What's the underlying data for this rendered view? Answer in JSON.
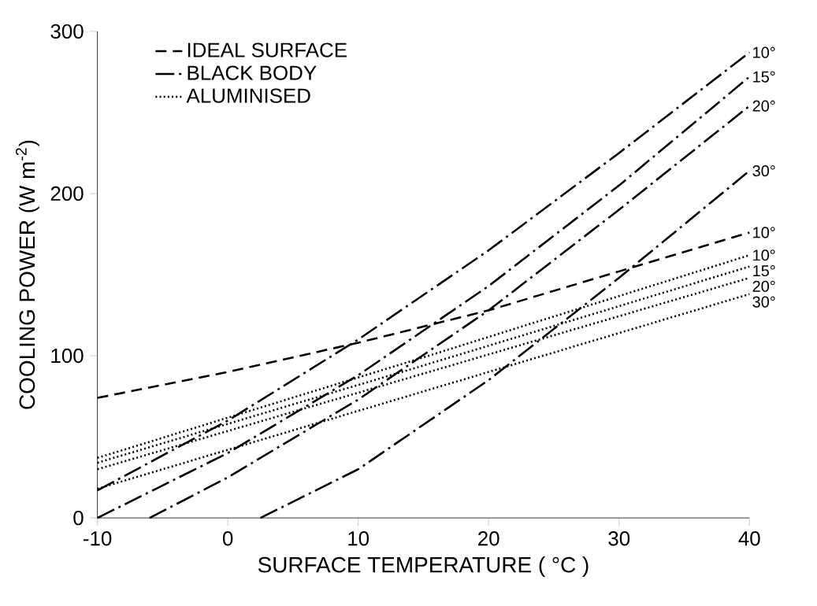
{
  "chart_data": {
    "type": "line",
    "xlabel": "SURFACE TEMPERATURE ( °C )",
    "ylabel": "COOLING POWER (W m$^{-2}$)",
    "xlim": [
      -10,
      40
    ],
    "ylim": [
      0,
      300
    ],
    "xticks": [
      -10,
      0,
      10,
      20,
      30,
      40
    ],
    "yticks": [
      0,
      100,
      200,
      300
    ],
    "grid": false,
    "legend": "top left",
    "marker": "none",
    "series": [
      {
        "name": "IDEAL SURFACE",
        "color": "#000000",
        "line_style": "dashed",
        "x": [
          -10,
          0,
          10,
          20,
          30,
          40
        ],
        "values": [
          74,
          90,
          108,
          128,
          152,
          176
        ]
      },
      {
        "name": "BLACK BODY",
        "color": "#000000",
        "line_style": "dashdot",
        "x": [
          -10,
          0,
          10,
          20,
          30,
          40
        ],
        "values": [
          17,
          60,
          110,
          165,
          225,
          287
        ]
      },
      {
        "color": "#000000",
        "line_style": "dashdot",
        "x": [
          -10,
          0,
          10,
          20,
          30,
          40
        ],
        "values": [
          0,
          40,
          88,
          143,
          205,
          272
        ]
      },
      {
        "color": "#000000",
        "line_style": "dashdot",
        "x": [
          -6,
          0,
          10,
          20,
          30,
          40
        ],
        "values": [
          0,
          25,
          73,
          128,
          190,
          254
        ]
      },
      {
        "color": "#000000",
        "line_style": "dashdot",
        "x": [
          2.5,
          10,
          20,
          30,
          40
        ],
        "values": [
          0,
          30,
          85,
          148,
          214
        ]
      },
      {
        "name": "ALUMINISED",
        "color": "#000000",
        "line_style": "dotted",
        "x": [
          -10,
          15,
          40
        ],
        "values": [
          37,
          99,
          162
        ]
      },
      {
        "color": "#000000",
        "line_style": "dotted",
        "x": [
          -10,
          15,
          40
        ],
        "values": [
          34,
          94,
          155
        ]
      },
      {
        "color": "#000000",
        "line_style": "dotted",
        "x": [
          -10,
          15,
          40
        ],
        "values": [
          30,
          89,
          148
        ]
      },
      {
        "color": "#000000",
        "line_style": "dotted",
        "x": [
          -10,
          15,
          40
        ],
        "values": [
          18,
          78,
          138
        ]
      }
    ],
    "annotations": [
      "10°",
      "10°",
      "15°",
      "20°",
      "30°",
      "10°",
      "15°",
      "20°",
      "30°"
    ]
  }
}
